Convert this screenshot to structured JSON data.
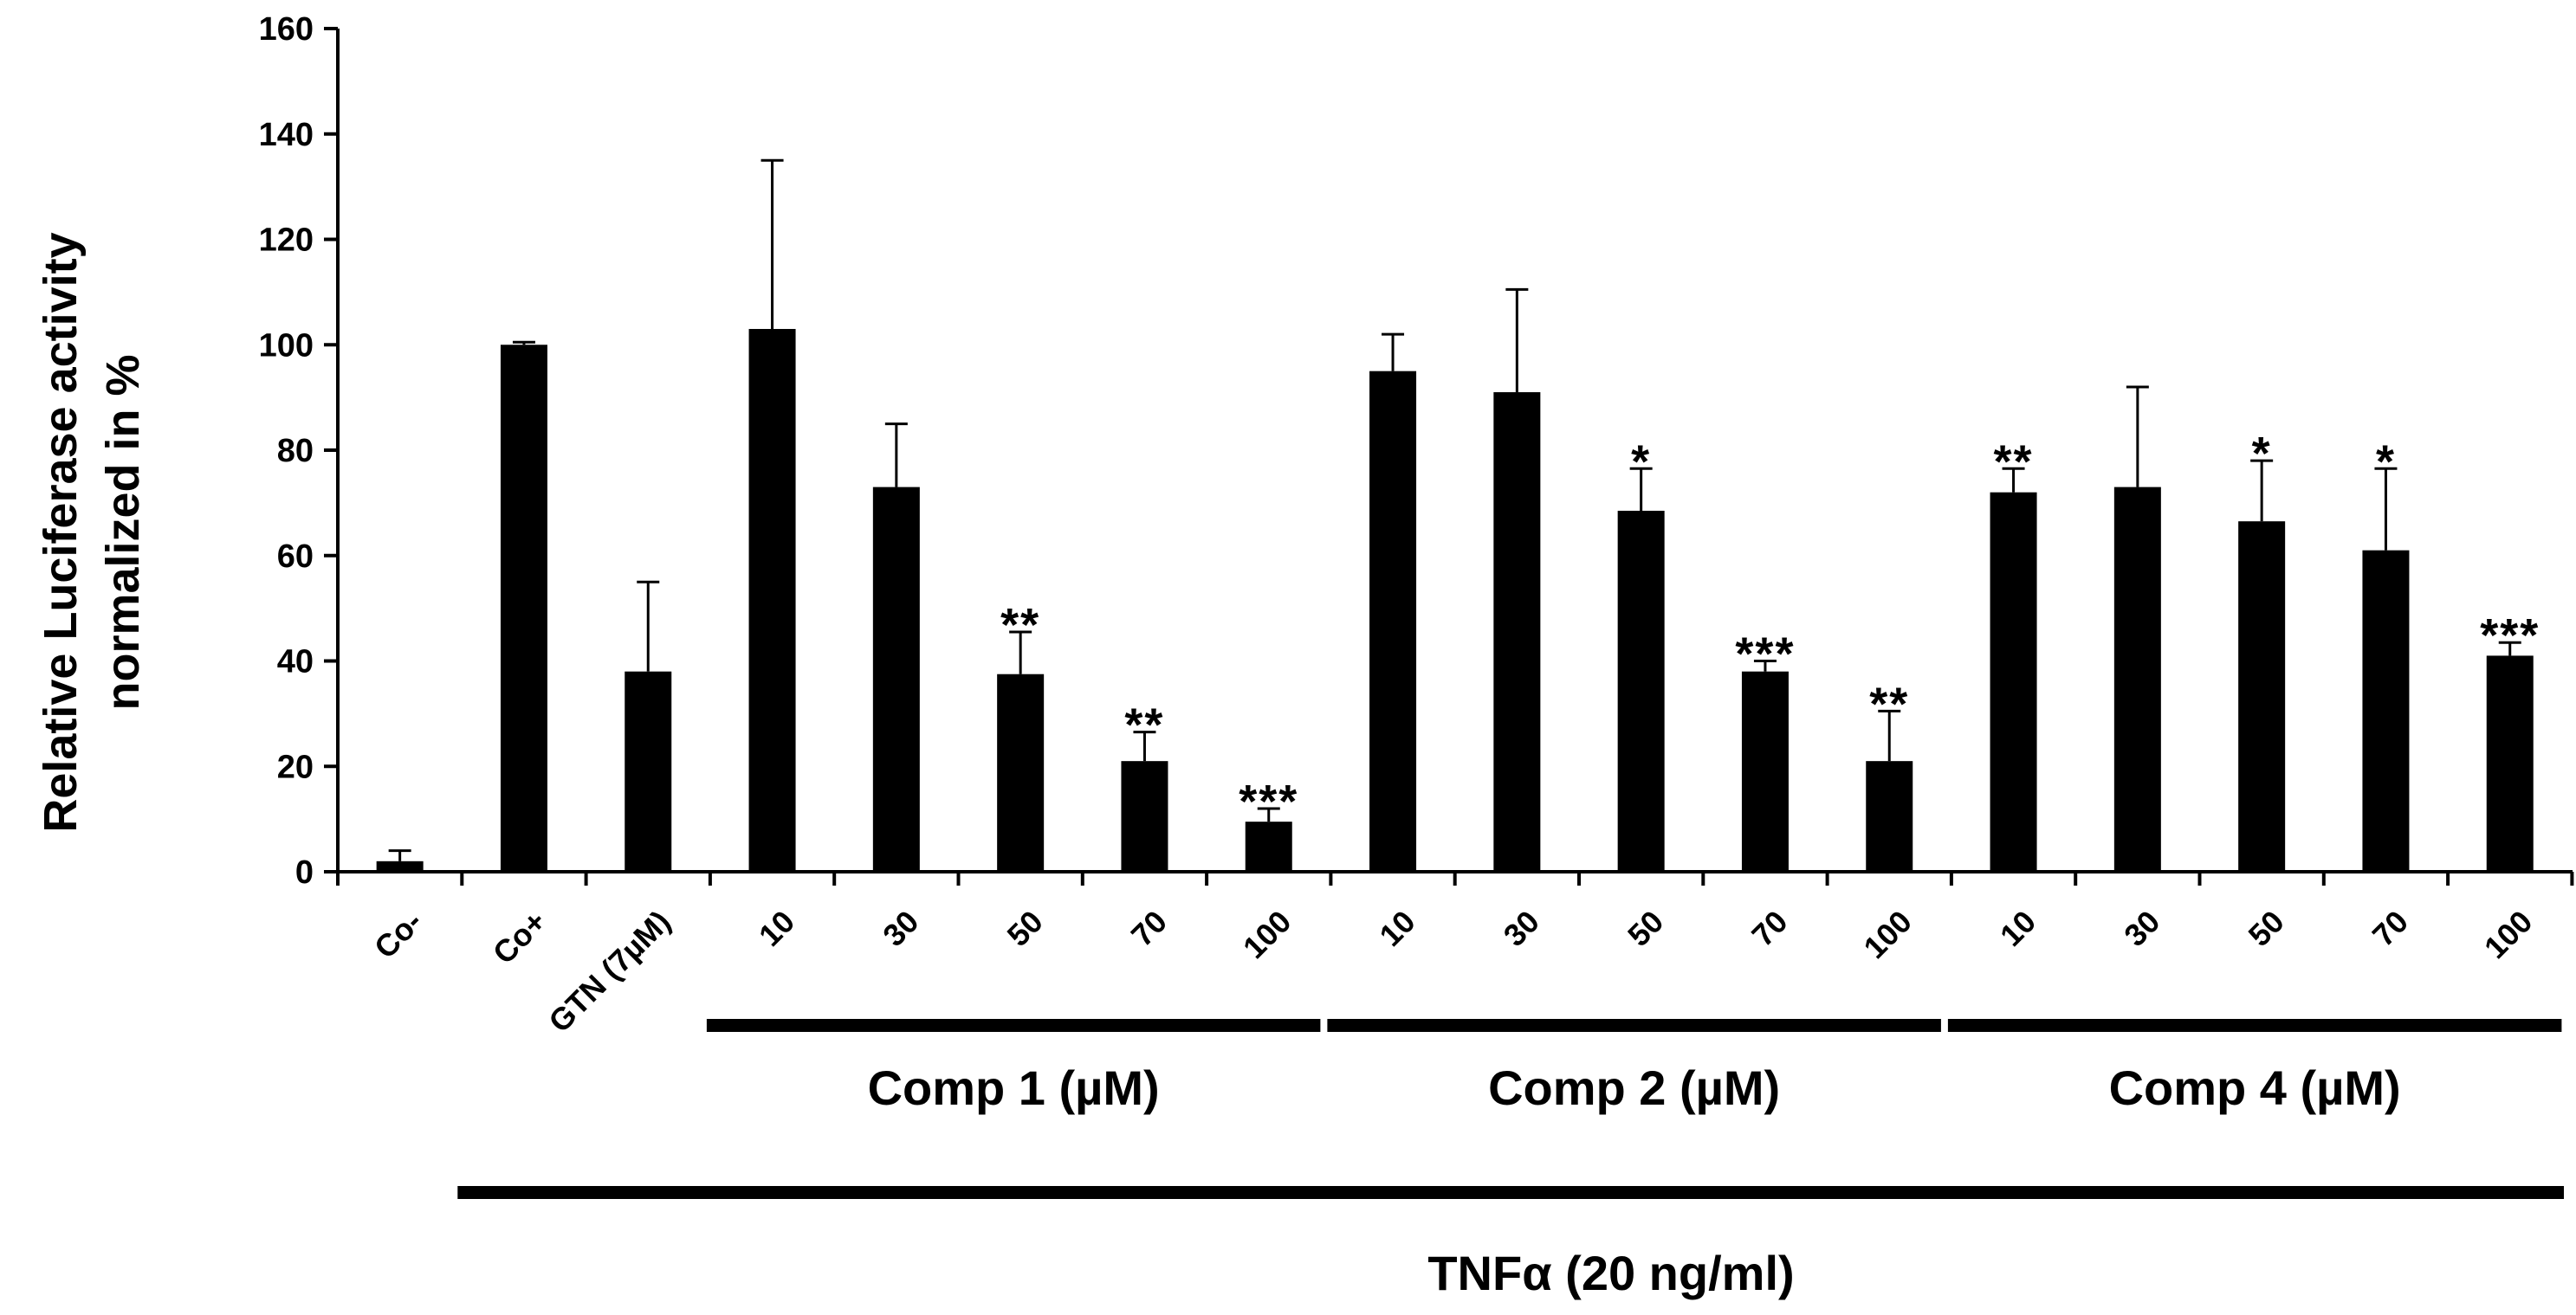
{
  "chart_data": {
    "type": "bar",
    "title": "",
    "ylabel": [
      "Relative Luciferase activity",
      "normalized in %"
    ],
    "xlabel": "",
    "ylim": [
      0,
      160
    ],
    "yticks": [
      0,
      20,
      40,
      60,
      80,
      100,
      120,
      140,
      160
    ],
    "bar_color": "#000000",
    "categories": [
      "Co-",
      "Co+",
      "GTN (7µM)",
      "10",
      "30",
      "50",
      "70",
      "100",
      "10",
      "30",
      "50",
      "70",
      "100",
      "10",
      "30",
      "50",
      "70",
      "100"
    ],
    "values": [
      2,
      100,
      38,
      103,
      73,
      37.5,
      21,
      9.5,
      95,
      91,
      68.5,
      38,
      21,
      72,
      73,
      66.5,
      61,
      41
    ],
    "errors": [
      2,
      0.5,
      17,
      32,
      12,
      8,
      5.5,
      2.5,
      7,
      19.5,
      8,
      2,
      9.5,
      4.5,
      19,
      11.5,
      15.5,
      2.5
    ],
    "significance": [
      "",
      "",
      "",
      "",
      "",
      "**",
      "**",
      "***",
      "",
      "",
      "*",
      "***",
      "**",
      "**",
      "",
      "*",
      "*",
      "***"
    ],
    "groups": [
      {
        "label": "Comp 1 (µM)",
        "start": 3,
        "end": 7
      },
      {
        "label": "Comp 2 (µM)",
        "start": 8,
        "end": 12
      },
      {
        "label": "Comp 4 (µM)",
        "start": 13,
        "end": 17
      }
    ],
    "treatment": {
      "label": "TNFα (20 ng/ml)",
      "start": 1,
      "end": 17
    }
  }
}
